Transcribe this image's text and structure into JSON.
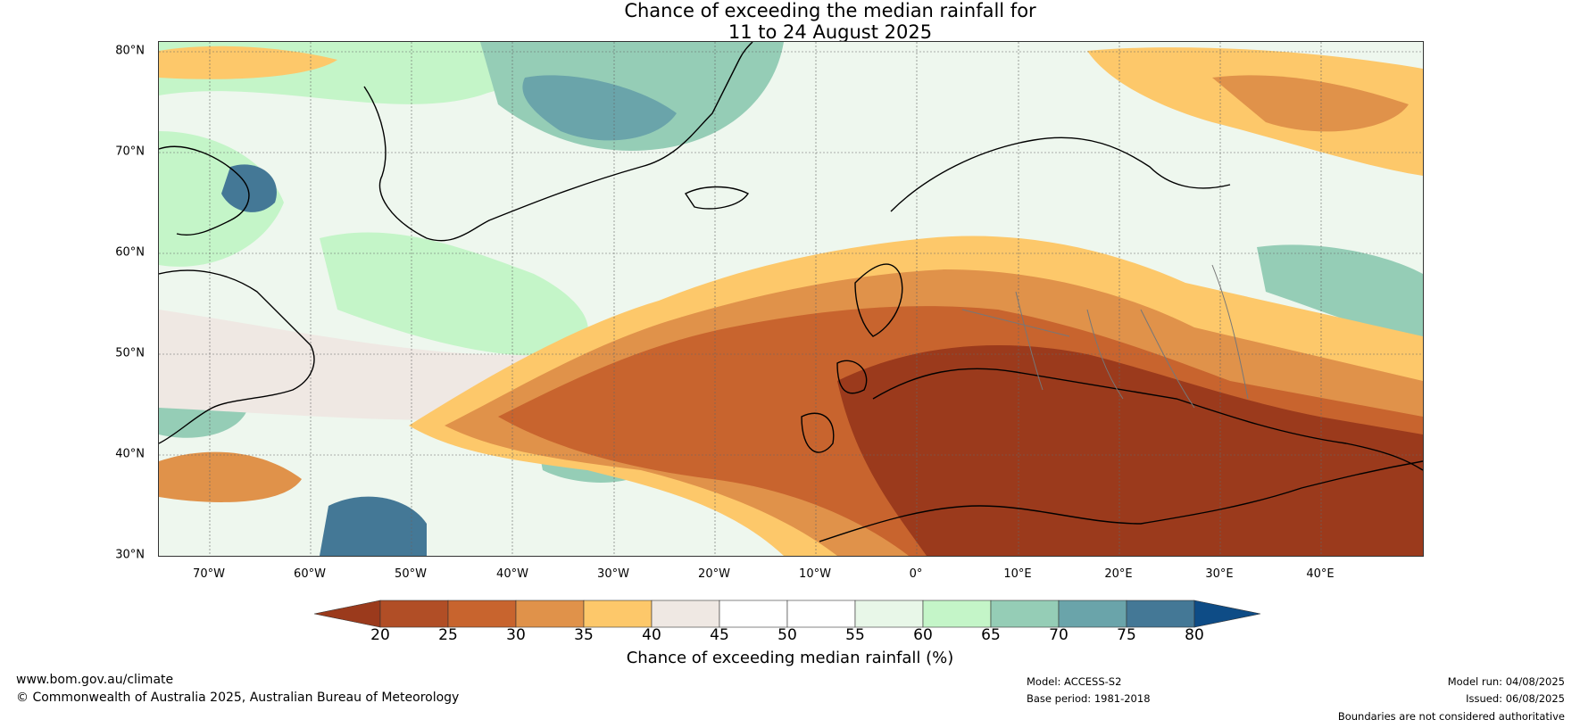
{
  "title_line1": "Chance of exceeding the median rainfall for",
  "title_line2": "11 to 24 August 2025",
  "map": {
    "region": "North Atlantic and Europe",
    "lat_range": [
      30,
      81
    ],
    "lon_range": [
      -75,
      50
    ],
    "lat_labels": [
      "80°N",
      "70°N",
      "60°N",
      "50°N",
      "40°N",
      "30°N"
    ],
    "lon_labels": [
      "70°W",
      "60°W",
      "50°W",
      "40°W",
      "30°W",
      "20°W",
      "10°W",
      "0°",
      "10°E",
      "20°E",
      "30°E",
      "40°E"
    ]
  },
  "colorbar": {
    "ticks": [
      "20",
      "25",
      "30",
      "35",
      "40",
      "45",
      "50",
      "55",
      "60",
      "65",
      "70",
      "75",
      "80"
    ],
    "colors": [
      "#9b3a1c",
      "#b14e26",
      "#c8642e",
      "#e0924a",
      "#fdc86a",
      "#efe8e3",
      "#ffffff",
      "#ffffff",
      "#e8f7e8",
      "#c4f5c8",
      "#95cdb6",
      "#6aa4aa",
      "#447896",
      "#0e4c86"
    ],
    "label": "Chance of exceeding median rainfall (%)"
  },
  "footer": {
    "website": "www.bom.gov.au/climate",
    "copyright": "© Commonwealth of Australia 2025, Australian Bureau of Meteorology",
    "model": "Model: ACCESS-S2",
    "base_period": "Base period: 1981-2018",
    "model_run": "Model run: 04/08/2025",
    "issued": "Issued: 06/08/2025",
    "disclaimer": "Boundaries are not considered authoritative"
  }
}
